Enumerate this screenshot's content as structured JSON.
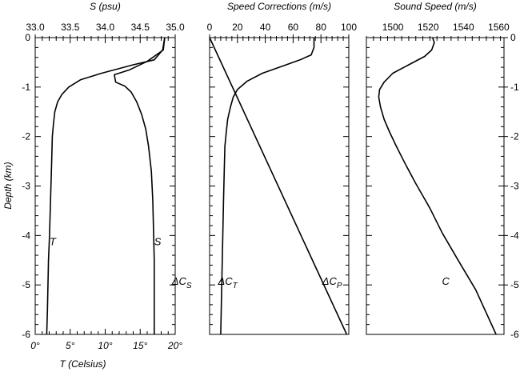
{
  "chart_data": {
    "type": "line",
    "ylabel": "Depth (km)",
    "ylim": [
      -6,
      0
    ],
    "yticks": [
      0,
      -1,
      -2,
      -3,
      -4,
      -5,
      -6
    ],
    "panels": [
      {
        "id": "ts",
        "top_title": "S (psu)",
        "top_ticks": [
          "33.0",
          "33.5",
          "34.0",
          "34.5",
          "35.0"
        ],
        "top_lim": [
          33.0,
          35.0
        ],
        "bottom_title": "T (Celsius)",
        "bottom_ticks": [
          "0°",
          "5°",
          "10°",
          "15°",
          "20°"
        ],
        "bottom_lim": [
          0,
          20
        ],
        "series": [
          {
            "name": "T",
            "axis": "bottom",
            "x": [
              18.5,
              18.2,
              17.0,
              14.0,
              9.5,
              6.5,
              4.8,
              3.8,
              3.2,
              2.8,
              2.6,
              2.45,
              2.35,
              2.25,
              2.15,
              2.05,
              1.9,
              1.75,
              1.65
            ],
            "y": [
              0,
              -0.25,
              -0.45,
              -0.55,
              -0.72,
              -0.85,
              -1.0,
              -1.15,
              -1.3,
              -1.5,
              -1.75,
              -2.0,
              -2.5,
              -3.0,
              -3.5,
              -4.0,
              -4.5,
              -5.5,
              -6.0
            ]
          },
          {
            "name": "S",
            "axis": "top",
            "x": [
              34.85,
              34.83,
              34.78,
              34.6,
              34.35,
              34.13,
              34.15,
              34.28,
              34.37,
              34.45,
              34.52,
              34.58,
              34.62,
              34.66,
              34.68,
              34.69,
              34.7,
              34.7,
              34.7
            ],
            "y": [
              0,
              -0.25,
              -0.3,
              -0.48,
              -0.65,
              -0.75,
              -0.9,
              -0.98,
              -1.1,
              -1.3,
              -1.55,
              -1.85,
              -2.2,
              -2.7,
              -3.3,
              -3.9,
              -4.5,
              -5.3,
              -6.0
            ]
          }
        ],
        "annotations": [
          {
            "text": "T",
            "x": 2.5,
            "y": -4.2,
            "axis": "bottom"
          },
          {
            "text": "S",
            "x": 34.75,
            "y": -4.2,
            "axis": "top"
          }
        ]
      },
      {
        "id": "corr",
        "top_title": "Speed Corrections (m/s)",
        "top_ticks": [
          "0",
          "20",
          "40",
          "60",
          "80",
          "100"
        ],
        "top_lim": [
          0,
          100
        ],
        "series": [
          {
            "name": "ΔC_T",
            "x": [
              75,
              75,
              73,
              65,
              52,
              38,
              27,
              20,
              17,
              15,
              13,
              12,
              11,
              10.5,
              10,
              9.5,
              9,
              8.5,
              8
            ],
            "y": [
              0,
              -0.2,
              -0.35,
              -0.45,
              -0.58,
              -0.72,
              -0.88,
              -1.05,
              -1.2,
              -1.4,
              -1.65,
              -1.9,
              -2.2,
              -2.7,
              -3.3,
              -4.0,
              -4.6,
              -5.3,
              -6.0
            ]
          },
          {
            "name": "ΔC_P",
            "x": [
              0,
              98.5
            ],
            "y": [
              0,
              -6.0
            ]
          }
        ],
        "annotations": [
          {
            "sym": "ΔC",
            "sub": "S",
            "x": -20,
            "y": -5.0
          },
          {
            "sym": "ΔC",
            "sub": "T",
            "x": 13,
            "y": -5.0
          },
          {
            "sym": "ΔC",
            "sub": "P",
            "x": 88,
            "y": -5.0
          }
        ]
      },
      {
        "id": "c",
        "top_title": "Sound Speed (m/s)",
        "top_ticks": [
          "1500",
          "1520",
          "1540",
          "1560"
        ],
        "top_lim": [
          1485,
          1563
        ],
        "series": [
          {
            "name": "C",
            "x": [
              1522.5,
              1523.5,
              1522,
              1518,
              1509,
              1500,
              1495,
              1492.5,
              1492,
              1493,
              1495,
              1498,
              1502,
              1507,
              1513,
              1521,
              1528,
              1537,
              1547,
              1558.5
            ],
            "y": [
              0,
              -0.1,
              -0.25,
              -0.38,
              -0.55,
              -0.72,
              -0.9,
              -1.05,
              -1.2,
              -1.4,
              -1.65,
              -1.9,
              -2.2,
              -2.55,
              -2.95,
              -3.45,
              -3.95,
              -4.5,
              -5.1,
              -6.0
            ]
          }
        ],
        "annotations": [
          {
            "text": "C",
            "x": 1530,
            "y": -5.0
          }
        ]
      }
    ]
  }
}
